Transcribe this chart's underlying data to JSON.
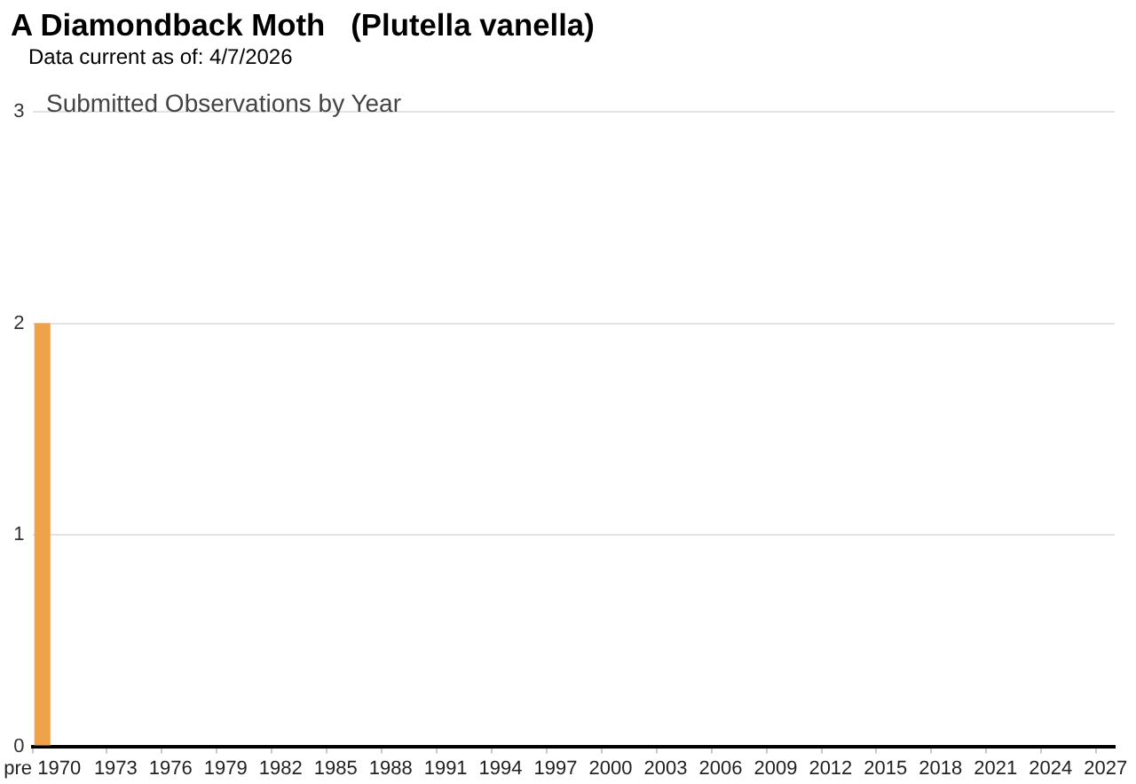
{
  "chart_data": {
    "type": "bar",
    "title": "A Diamondback Moth   (Plutella vanella)",
    "subtitle": "Submitted Observations by Year",
    "annotations": [
      "Data current as of: 4/7/2026"
    ],
    "categories": [
      "pre 1970",
      null,
      null,
      null,
      "1973",
      null,
      null,
      "1976",
      null,
      null,
      "1979",
      null,
      null,
      "1982",
      null,
      null,
      "1985",
      null,
      null,
      "1988",
      null,
      null,
      "1991",
      null,
      null,
      "1994",
      null,
      null,
      "1997",
      null,
      null,
      "2000",
      null,
      null,
      "2003",
      null,
      null,
      "2006",
      null,
      null,
      "2009",
      null,
      null,
      "2012",
      null,
      null,
      "2015",
      null,
      null,
      "2018",
      null,
      null,
      "2021",
      null,
      null,
      "2024",
      null,
      null,
      "2027"
    ],
    "values": [
      2,
      0,
      0,
      0,
      0,
      0,
      0,
      0,
      0,
      0,
      0,
      0,
      0,
      0,
      0,
      0,
      0,
      0,
      0,
      0,
      0,
      0,
      0,
      0,
      0,
      0,
      0,
      0,
      0,
      0,
      0,
      0,
      0,
      0,
      0,
      0,
      0,
      0,
      0,
      0,
      0,
      0,
      0,
      0,
      0,
      0,
      0,
      0,
      0,
      0,
      0,
      0,
      0,
      0,
      0,
      0,
      0,
      0,
      0
    ],
    "color": "#eea24a",
    "ylim": [
      0,
      3
    ],
    "yticks": [
      0,
      1,
      2,
      3
    ],
    "grid": "y"
  }
}
